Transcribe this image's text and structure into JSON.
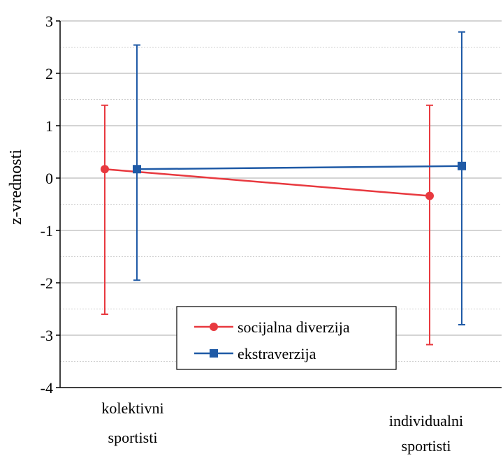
{
  "chart_data": {
    "type": "line",
    "title": "",
    "xlabel": "",
    "ylabel": "z-vrednosti",
    "ylim": [
      -4,
      3
    ],
    "yticks": [
      -4,
      -3,
      -2,
      -1,
      0,
      1,
      2,
      3
    ],
    "ytick_labels": [
      "-4",
      "-3",
      "-2",
      "-1",
      "0",
      "1",
      "2",
      "3"
    ],
    "categories": [
      {
        "line1": "kolektivni",
        "line2": "sportisti"
      },
      {
        "line1": "individualni",
        "line2": "sportisti"
      }
    ],
    "grid": true,
    "legend_position": "bottom-center",
    "series": [
      {
        "name": "socijalna diverzija",
        "color": "#e8393f",
        "marker": "circle",
        "values": [
          0.17,
          -0.34
        ],
        "error_low": [
          -2.6,
          -3.18
        ],
        "error_high": [
          1.39,
          1.39
        ]
      },
      {
        "name": "ekstraverzija",
        "color": "#1f5aa6",
        "marker": "square",
        "values": [
          0.17,
          0.23
        ],
        "error_low": [
          -1.95,
          -2.8
        ],
        "error_high": [
          2.54,
          2.79
        ]
      }
    ]
  }
}
